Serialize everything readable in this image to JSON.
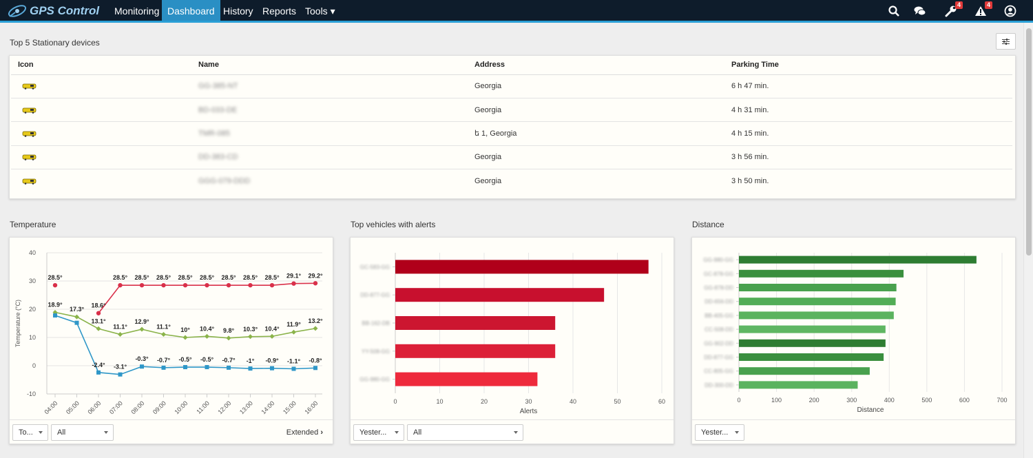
{
  "nav": {
    "brand": "GPS Control",
    "items": [
      {
        "label": "Monitoring",
        "active": false
      },
      {
        "label": "Dashboard",
        "active": true
      },
      {
        "label": "History",
        "active": false
      },
      {
        "label": "Reports",
        "active": false
      },
      {
        "label": "Tools ▾",
        "active": false
      }
    ],
    "icons": {
      "search": "search-icon",
      "chat": "chat-icon",
      "wrench": "wrench-icon",
      "alert": "alert-icon",
      "user": "user-icon"
    },
    "wrench_badge": "4",
    "alert_badge": "4"
  },
  "stationary": {
    "title": "Top 5 Stationary devices",
    "headers": [
      "Icon",
      "Name",
      "Address",
      "Parking Time"
    ],
    "rows": [
      {
        "name": "GG-385-NT",
        "address": "Georgia",
        "time": "6 h 47 min."
      },
      {
        "name": "BD-033-DE",
        "address": "Georgia",
        "time": "4 h 31 min."
      },
      {
        "name": "TMR-085",
        "address": "ե 1, Georgia",
        "time": "4 h 15 min."
      },
      {
        "name": "DD-383-CD",
        "address": "Georgia",
        "time": "3 h 56 min."
      },
      {
        "name": "GGG-079-DDD",
        "address": "Georgia",
        "time": "3 h 50 min."
      }
    ]
  },
  "temperature": {
    "title": "Temperature",
    "period": "To...",
    "filter": "All",
    "extended": "Extended",
    "chart_data": {
      "type": "line",
      "ylabel": "Temperature (°C)",
      "ylim": [
        -10,
        40
      ],
      "yticks": [
        -10,
        0,
        10,
        20,
        30,
        40
      ],
      "categories": [
        "04:00",
        "05:00",
        "06:00",
        "07:00",
        "08:00",
        "09:00",
        "10:00",
        "11:00",
        "12:00",
        "13:00",
        "14:00",
        "15:00",
        "16:00"
      ],
      "series": [
        {
          "color": "#d9304a",
          "marker": "circle",
          "values": [
            28.5,
            null,
            18.6,
            28.5,
            28.5,
            28.5,
            28.5,
            28.5,
            28.5,
            28.5,
            28.5,
            29.1,
            29.2
          ],
          "labels": [
            "28.5°",
            "",
            "18.6°",
            "28.5°",
            "28.5°",
            "28.5°",
            "28.5°",
            "28.5°",
            "28.5°",
            "28.5°",
            "28.5°",
            "29.1°",
            "29.2°"
          ]
        },
        {
          "color": "#8ab34a",
          "marker": "diamond",
          "values": [
            18.9,
            17.3,
            13.1,
            11.1,
            12.9,
            11.1,
            10,
            10.4,
            9.8,
            10.3,
            10.4,
            11.9,
            13.2
          ],
          "labels": [
            "18.9°",
            "17.3°",
            "13.1°",
            "11.1°",
            "12.9°",
            "11.1°",
            "10°",
            "10.4°",
            "9.8°",
            "10.3°",
            "10.4°",
            "11.9°",
            "13.2°"
          ]
        },
        {
          "color": "#2f97c8",
          "marker": "square",
          "values": [
            17.8,
            15.2,
            -2.4,
            -3.1,
            -0.3,
            -0.7,
            -0.5,
            -0.5,
            -0.7,
            -1,
            -0.9,
            -1.1,
            -0.8
          ],
          "labels": [
            "",
            "",
            "-2.4°",
            "-3.1°",
            "-0.3°",
            "-0.7°",
            "-0.5°",
            "-0.5°",
            "-0.7°",
            "-1°",
            "-0.9°",
            "-1.1°",
            "-0.8°"
          ]
        }
      ]
    }
  },
  "alerts": {
    "title": "Top vehicles with alerts",
    "period": "Yester...",
    "filter": "All",
    "chart_data": {
      "type": "bar",
      "orientation": "horizontal",
      "xlabel": "Alerts",
      "xlim": [
        0,
        60
      ],
      "xticks": [
        0,
        10,
        20,
        30,
        40,
        50,
        60
      ],
      "categories": [
        "GC-583-GG",
        "DD-877-GG",
        "BB-162-DB",
        "YY-508-GG",
        "GG-980-GG"
      ],
      "values": [
        57,
        47,
        36,
        36,
        32
      ],
      "colors": [
        "#b0001a",
        "#c8102e",
        "#cc1630",
        "#dc2038",
        "#ee2a3c"
      ]
    }
  },
  "distance": {
    "title": "Distance",
    "period": "Yester...",
    "chart_data": {
      "type": "bar",
      "orientation": "horizontal",
      "xlabel": "Distance",
      "xlim": [
        0,
        700
      ],
      "xticks": [
        0,
        100,
        200,
        300,
        400,
        500,
        600,
        700
      ],
      "categories": [
        "GG-980-GG",
        "GC-878-GG",
        "GG-878-DD",
        "DD-656-DD",
        "BB-405-GG",
        "CC-508-DD",
        "GG-902-DD",
        "DD-877-GG",
        "CC-805-GG",
        "DD-300-DD"
      ],
      "values": [
        632,
        438,
        419,
        417,
        412,
        390,
        390,
        385,
        348,
        316
      ],
      "colors": [
        "#2e7d32",
        "#3a8f3e",
        "#49a14e",
        "#52ad56",
        "#5bb35f",
        "#5fb662",
        "#2e7d32",
        "#3a8f3e",
        "#49a14e",
        "#5bb35f"
      ]
    }
  }
}
